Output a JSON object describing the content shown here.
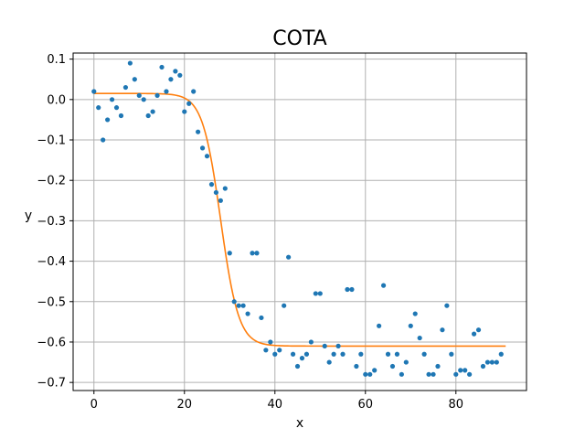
{
  "chart_data": {
    "type": "scatter",
    "title": "COTA",
    "xlabel": "x",
    "ylabel": "y",
    "xlim": [
      -4.6,
      95.6
    ],
    "ylim": [
      -0.72,
      0.115
    ],
    "grid": true,
    "xticks": [
      0,
      20,
      40,
      60,
      80
    ],
    "xtick_labels": [
      "0",
      "20",
      "40",
      "60",
      "80"
    ],
    "yticks": [
      0.1,
      0.0,
      -0.1,
      -0.2,
      -0.3,
      -0.4,
      -0.5,
      -0.6,
      -0.7
    ],
    "ytick_labels": [
      "0.1",
      "0.0",
      "−0.1",
      "−0.2",
      "−0.3",
      "−0.4",
      "−0.5",
      "−0.6",
      "−0.7"
    ],
    "series": [
      {
        "kind": "scatter",
        "color": "#1f77b4",
        "x": [
          0,
          1,
          2,
          3,
          4,
          5,
          6,
          7,
          8,
          9,
          10,
          11,
          12,
          13,
          14,
          15,
          16,
          17,
          18,
          19,
          20,
          21,
          22,
          23,
          24,
          25,
          26,
          27,
          28,
          29,
          30,
          31,
          32,
          33,
          34,
          35,
          36,
          37,
          38,
          39,
          40,
          41,
          42,
          43,
          44,
          45,
          46,
          47,
          48,
          49,
          50,
          51,
          52,
          53,
          54,
          55,
          56,
          57,
          58,
          59,
          60,
          61,
          62,
          63,
          64,
          65,
          66,
          67,
          68,
          69,
          70,
          71,
          72,
          73,
          74,
          75,
          76,
          77,
          78,
          79,
          80,
          81,
          82,
          83,
          84,
          85,
          86,
          87,
          88,
          89,
          90
        ],
        "y": [
          0.02,
          -0.02,
          -0.1,
          -0.05,
          0.0,
          -0.02,
          -0.04,
          0.03,
          0.09,
          0.05,
          0.01,
          0.0,
          -0.04,
          -0.03,
          0.01,
          0.08,
          0.02,
          0.05,
          0.07,
          0.06,
          -0.03,
          -0.01,
          0.02,
          -0.08,
          -0.12,
          -0.14,
          -0.21,
          -0.23,
          -0.25,
          -0.22,
          -0.38,
          -0.5,
          -0.51,
          -0.51,
          -0.53,
          -0.38,
          -0.38,
          -0.54,
          -0.62,
          -0.6,
          -0.63,
          -0.62,
          -0.51,
          -0.39,
          -0.63,
          -0.66,
          -0.64,
          -0.63,
          -0.6,
          -0.48,
          -0.48,
          -0.61,
          -0.65,
          -0.63,
          -0.61,
          -0.63,
          -0.47,
          -0.47,
          -0.66,
          -0.63,
          -0.68,
          -0.68,
          -0.67,
          -0.56,
          -0.46,
          -0.63,
          -0.66,
          -0.63,
          -0.68,
          -0.65,
          -0.56,
          -0.53,
          -0.59,
          -0.63,
          -0.68,
          -0.68,
          -0.66,
          -0.57,
          -0.51,
          -0.63,
          -0.68,
          -0.67,
          -0.67,
          -0.68,
          -0.58,
          -0.57,
          -0.66,
          -0.65,
          -0.65,
          -0.65,
          -0.63
        ]
      },
      {
        "kind": "line",
        "color": "#ff7f0e",
        "model": "logistic",
        "top": 0.015,
        "bottom": -0.61,
        "midpoint": 28.0,
        "scale": 2.0,
        "x_range": [
          0,
          91
        ]
      }
    ]
  }
}
